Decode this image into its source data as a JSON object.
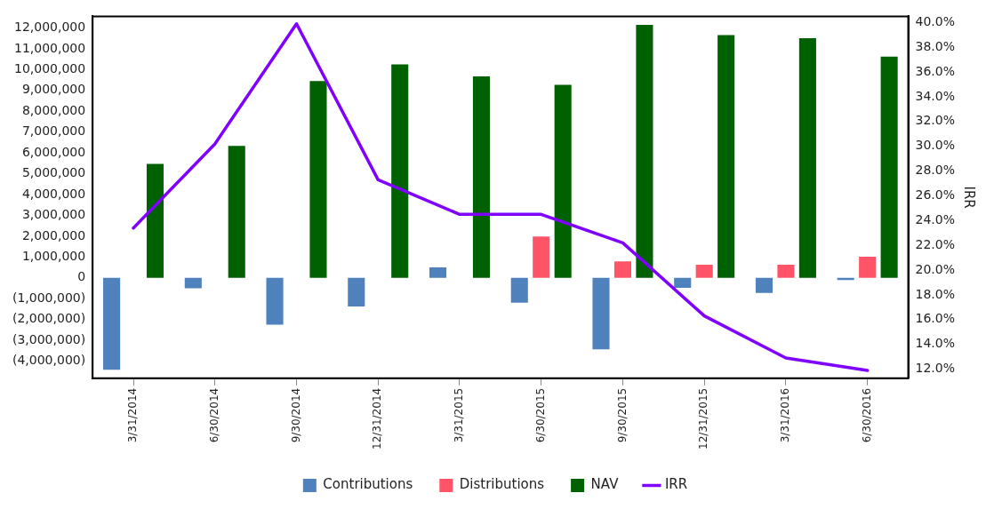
{
  "chart_data": {
    "type": "bar",
    "y2label": "IRR",
    "categories": [
      "3/31/2014",
      "6/30/2014",
      "9/30/2014",
      "12/31/2014",
      "3/31/2015",
      "6/30/2015",
      "9/30/2015",
      "12/31/2015",
      "3/31/2016",
      "6/30/2016"
    ],
    "series": [
      {
        "name": "Contributions",
        "color": "#4f81bd",
        "values": [
          -4410000,
          -500000,
          -2250000,
          -1370000,
          500000,
          -1190000,
          -3430000,
          -480000,
          -720000,
          -100000
        ]
      },
      {
        "name": "Distributions",
        "color": "#ff5467",
        "values": [
          0,
          0,
          0,
          0,
          0,
          1990000,
          790000,
          630000,
          630000,
          1020000
        ]
      },
      {
        "name": "NAV",
        "color": "#006100",
        "values": [
          5470000,
          6340000,
          9450000,
          10250000,
          9680000,
          9270000,
          12150000,
          11660000,
          11510000,
          10630000
        ]
      },
      {
        "name": "IRR",
        "type": "line",
        "axis": "y2",
        "color": "#8000ff",
        "values": [
          23.4,
          30.2,
          39.9,
          27.3,
          24.5,
          24.5,
          22.2,
          16.3,
          12.9,
          11.9
        ]
      }
    ],
    "ylim": [
      -4820000,
      12560000
    ],
    "yticks": [
      {
        "value": -4000000,
        "label": "(4,000,000)"
      },
      {
        "value": -3000000,
        "label": "(3,000,000)"
      },
      {
        "value": -2000000,
        "label": "(2,000,000)"
      },
      {
        "value": -1000000,
        "label": "(1,000,000)"
      },
      0,
      {
        "value": 1000000,
        "label": "1,000,000"
      },
      {
        "value": 2000000,
        "label": "2,000,000"
      },
      {
        "value": 3000000,
        "label": "3,000,000"
      },
      {
        "value": 4000000,
        "label": "4,000,000"
      },
      {
        "value": 5000000,
        "label": "5,000,000"
      },
      {
        "value": 6000000,
        "label": "6,000,000"
      },
      {
        "value": 7000000,
        "label": "7,000,000"
      },
      {
        "value": 8000000,
        "label": "8,000,000"
      },
      {
        "value": 9000000,
        "label": "9,000,000"
      },
      {
        "value": 10000000,
        "label": "10,000,000"
      },
      {
        "value": 11000000,
        "label": "11,000,000"
      },
      {
        "value": 12000000,
        "label": "12,000,000"
      }
    ],
    "y2lim": [
      11.26,
      40.5
    ],
    "y2ticks": [
      {
        "value": 12,
        "label": "12.0%"
      },
      {
        "value": 14,
        "label": "14.0%"
      },
      {
        "value": 16,
        "label": "16.0%"
      },
      {
        "value": 18,
        "label": "18.0%"
      },
      {
        "value": 20,
        "label": "20.0%"
      },
      {
        "value": 22,
        "label": "22.0%"
      },
      {
        "value": 24,
        "label": "24.0%"
      },
      {
        "value": 26,
        "label": "26.0%"
      },
      {
        "value": 28,
        "label": "28.0%"
      },
      {
        "value": 30,
        "label": "30.0%"
      },
      {
        "value": 32,
        "label": "32.0%"
      },
      {
        "value": 34,
        "label": "34.0%"
      },
      {
        "value": 36,
        "label": "36.0%"
      },
      {
        "value": 38,
        "label": "38.0%"
      },
      {
        "value": 40,
        "label": "40.0%"
      }
    ],
    "grid": false,
    "legend": "bottom",
    "marker": "none",
    "line_style": "solid"
  }
}
